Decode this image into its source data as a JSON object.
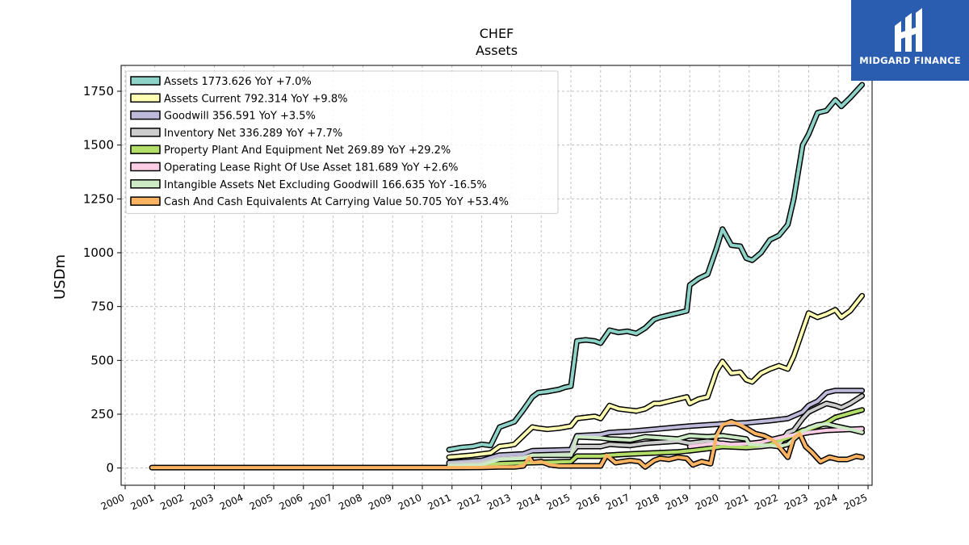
{
  "brand": {
    "name": "MIDGARD FINANCE",
    "bg_color": "#2a5db0"
  },
  "chart_data": {
    "type": "line",
    "title": "CHEF",
    "subtitle": "Assets",
    "ylabel": "USDm",
    "xlabel": "",
    "xlim": [
      2000,
      2025
    ],
    "ylim": [
      -80,
      1870
    ],
    "grid": true,
    "legend_position": "top-left",
    "x_ticks": [
      "2000",
      "2001",
      "2002",
      "2003",
      "2004",
      "2005",
      "2006",
      "2007",
      "2008",
      "2009",
      "2010",
      "2011",
      "2012",
      "2013",
      "2014",
      "2015",
      "2016",
      "2017",
      "2018",
      "2019",
      "2020",
      "2021",
      "2022",
      "2023",
      "2024",
      "2025"
    ],
    "y_ticks": [
      0,
      250,
      500,
      750,
      1000,
      1250,
      1500,
      1750
    ],
    "series": [
      {
        "name": "Assets",
        "label": "Assets  1773.626 YoY +7.0%",
        "color": "#8dd3c7",
        "points": [
          [
            2010.9,
            85
          ],
          [
            2011.3,
            95
          ],
          [
            2011.7,
            100
          ],
          [
            2012.0,
            110
          ],
          [
            2012.3,
            105
          ],
          [
            2012.6,
            190
          ],
          [
            2012.9,
            205
          ],
          [
            2013.1,
            215
          ],
          [
            2013.4,
            270
          ],
          [
            2013.7,
            330
          ],
          [
            2013.9,
            350
          ],
          [
            2014.2,
            355
          ],
          [
            2014.6,
            365
          ],
          [
            2014.8,
            375
          ],
          [
            2015.0,
            380
          ],
          [
            2015.2,
            590
          ],
          [
            2015.5,
            595
          ],
          [
            2015.8,
            590
          ],
          [
            2016.0,
            580
          ],
          [
            2016.3,
            640
          ],
          [
            2016.6,
            630
          ],
          [
            2016.9,
            635
          ],
          [
            2017.2,
            625
          ],
          [
            2017.5,
            650
          ],
          [
            2017.8,
            690
          ],
          [
            2018.0,
            700
          ],
          [
            2018.3,
            710
          ],
          [
            2018.6,
            720
          ],
          [
            2018.9,
            730
          ],
          [
            2019.0,
            850
          ],
          [
            2019.3,
            880
          ],
          [
            2019.6,
            900
          ],
          [
            2019.9,
            1020
          ],
          [
            2020.1,
            1110
          ],
          [
            2020.4,
            1035
          ],
          [
            2020.7,
            1030
          ],
          [
            2020.9,
            975
          ],
          [
            2021.1,
            965
          ],
          [
            2021.4,
            1000
          ],
          [
            2021.7,
            1060
          ],
          [
            2022.0,
            1080
          ],
          [
            2022.3,
            1130
          ],
          [
            2022.5,
            1250
          ],
          [
            2022.8,
            1500
          ],
          [
            2023.0,
            1550
          ],
          [
            2023.3,
            1650
          ],
          [
            2023.6,
            1660
          ],
          [
            2023.9,
            1710
          ],
          [
            2024.1,
            1680
          ],
          [
            2024.4,
            1720
          ],
          [
            2024.8,
            1780
          ]
        ]
      },
      {
        "name": "Assets Current",
        "label": "Assets Current  792.314 YoY +9.8%",
        "color": "#ffffb3",
        "points": [
          [
            2010.9,
            50
          ],
          [
            2011.3,
            55
          ],
          [
            2011.7,
            60
          ],
          [
            2012.0,
            65
          ],
          [
            2012.3,
            70
          ],
          [
            2012.6,
            100
          ],
          [
            2012.9,
            105
          ],
          [
            2013.1,
            110
          ],
          [
            2013.4,
            150
          ],
          [
            2013.7,
            190
          ],
          [
            2013.9,
            185
          ],
          [
            2014.2,
            180
          ],
          [
            2014.6,
            185
          ],
          [
            2014.8,
            190
          ],
          [
            2015.0,
            195
          ],
          [
            2015.2,
            230
          ],
          [
            2015.5,
            235
          ],
          [
            2015.8,
            240
          ],
          [
            2016.0,
            230
          ],
          [
            2016.3,
            290
          ],
          [
            2016.6,
            275
          ],
          [
            2016.9,
            270
          ],
          [
            2017.2,
            265
          ],
          [
            2017.5,
            275
          ],
          [
            2017.8,
            300
          ],
          [
            2018.0,
            300
          ],
          [
            2018.3,
            310
          ],
          [
            2018.6,
            320
          ],
          [
            2018.9,
            330
          ],
          [
            2019.0,
            300
          ],
          [
            2019.3,
            320
          ],
          [
            2019.6,
            330
          ],
          [
            2019.9,
            450
          ],
          [
            2020.1,
            495
          ],
          [
            2020.4,
            440
          ],
          [
            2020.7,
            445
          ],
          [
            2020.9,
            410
          ],
          [
            2021.1,
            400
          ],
          [
            2021.4,
            440
          ],
          [
            2021.7,
            460
          ],
          [
            2022.0,
            475
          ],
          [
            2022.3,
            460
          ],
          [
            2022.5,
            520
          ],
          [
            2022.8,
            640
          ],
          [
            2023.0,
            720
          ],
          [
            2023.3,
            700
          ],
          [
            2023.6,
            715
          ],
          [
            2023.9,
            735
          ],
          [
            2024.1,
            700
          ],
          [
            2024.4,
            730
          ],
          [
            2024.8,
            800
          ]
        ]
      },
      {
        "name": "Goodwill",
        "label": "Goodwill  356.591 YoY +3.5%",
        "color": "#bebada",
        "points": [
          [
            2010.9,
            25
          ],
          [
            2012.0,
            35
          ],
          [
            2012.6,
            60
          ],
          [
            2013.4,
            65
          ],
          [
            2013.7,
            80
          ],
          [
            2015.0,
            85
          ],
          [
            2015.2,
            150
          ],
          [
            2016.0,
            155
          ],
          [
            2016.3,
            165
          ],
          [
            2017.0,
            170
          ],
          [
            2017.8,
            180
          ],
          [
            2018.6,
            190
          ],
          [
            2019.0,
            195
          ],
          [
            2019.6,
            200
          ],
          [
            2020.1,
            205
          ],
          [
            2020.9,
            210
          ],
          [
            2021.7,
            220
          ],
          [
            2022.3,
            230
          ],
          [
            2022.8,
            260
          ],
          [
            2023.0,
            290
          ],
          [
            2023.3,
            310
          ],
          [
            2023.6,
            350
          ],
          [
            2023.9,
            360
          ],
          [
            2024.8,
            360
          ]
        ]
      },
      {
        "name": "Inventory Net",
        "label": "Inventory Net  336.289 YoY +7.7%",
        "color": "#cccccc",
        "points": [
          [
            2010.9,
            20
          ],
          [
            2012.0,
            25
          ],
          [
            2012.6,
            45
          ],
          [
            2013.4,
            50
          ],
          [
            2013.7,
            60
          ],
          [
            2015.0,
            65
          ],
          [
            2015.2,
            100
          ],
          [
            2016.0,
            100
          ],
          [
            2016.3,
            110
          ],
          [
            2017.0,
            105
          ],
          [
            2017.5,
            115
          ],
          [
            2018.0,
            120
          ],
          [
            2018.6,
            125
          ],
          [
            2019.0,
            115
          ],
          [
            2019.6,
            125
          ],
          [
            2019.9,
            120
          ],
          [
            2020.1,
            110
          ],
          [
            2020.4,
            100
          ],
          [
            2020.9,
            95
          ],
          [
            2021.4,
            100
          ],
          [
            2021.7,
            105
          ],
          [
            2022.0,
            110
          ],
          [
            2022.3,
            165
          ],
          [
            2022.5,
            175
          ],
          [
            2022.8,
            230
          ],
          [
            2023.0,
            260
          ],
          [
            2023.3,
            280
          ],
          [
            2023.6,
            300
          ],
          [
            2023.9,
            290
          ],
          [
            2024.1,
            280
          ],
          [
            2024.4,
            300
          ],
          [
            2024.8,
            335
          ]
        ]
      },
      {
        "name": "Property Plant And Equipment Net",
        "label": "Property Plant And Equipment Net  269.89 YoY +29.2%",
        "color": "#b3de69",
        "points": [
          [
            2010.9,
            10
          ],
          [
            2012.0,
            15
          ],
          [
            2012.6,
            20
          ],
          [
            2013.7,
            25
          ],
          [
            2015.0,
            30
          ],
          [
            2015.2,
            55
          ],
          [
            2016.0,
            55
          ],
          [
            2016.3,
            60
          ],
          [
            2017.0,
            65
          ],
          [
            2017.8,
            70
          ],
          [
            2018.6,
            75
          ],
          [
            2019.0,
            80
          ],
          [
            2019.6,
            90
          ],
          [
            2020.1,
            100
          ],
          [
            2020.9,
            95
          ],
          [
            2021.7,
            110
          ],
          [
            2022.3,
            140
          ],
          [
            2022.8,
            175
          ],
          [
            2023.0,
            180
          ],
          [
            2023.3,
            195
          ],
          [
            2023.6,
            210
          ],
          [
            2023.9,
            235
          ],
          [
            2024.4,
            255
          ],
          [
            2024.8,
            270
          ]
        ]
      },
      {
        "name": "Operating Lease Right Of Use Asset",
        "label": "Operating Lease Right Of Use Asset  181.689 YoY +2.6%",
        "color": "#fccde5",
        "points": [
          [
            2019.0,
            100
          ],
          [
            2019.3,
            105
          ],
          [
            2019.6,
            110
          ],
          [
            2020.1,
            115
          ],
          [
            2020.4,
            110
          ],
          [
            2020.9,
            112
          ],
          [
            2021.4,
            120
          ],
          [
            2021.7,
            130
          ],
          [
            2022.0,
            140
          ],
          [
            2022.3,
            150
          ],
          [
            2022.8,
            160
          ],
          [
            2023.0,
            165
          ],
          [
            2023.3,
            170
          ],
          [
            2023.6,
            175
          ],
          [
            2024.1,
            178
          ],
          [
            2024.8,
            182
          ]
        ]
      },
      {
        "name": "Intangible Assets Net Excluding Goodwill",
        "label": "Intangible Assets Net Excluding Goodwill  166.635 YoY -16.5%",
        "color": "#ccebc5",
        "points": [
          [
            2010.9,
            10
          ],
          [
            2012.0,
            15
          ],
          [
            2012.6,
            40
          ],
          [
            2013.4,
            45
          ],
          [
            2013.7,
            60
          ],
          [
            2015.0,
            60
          ],
          [
            2015.2,
            145
          ],
          [
            2016.0,
            140
          ],
          [
            2016.3,
            135
          ],
          [
            2017.0,
            130
          ],
          [
            2017.5,
            145
          ],
          [
            2018.0,
            140
          ],
          [
            2018.6,
            135
          ],
          [
            2019.0,
            150
          ],
          [
            2019.6,
            145
          ],
          [
            2020.1,
            150
          ],
          [
            2020.9,
            135
          ],
          [
            2021.0,
            110
          ],
          [
            2021.7,
            105
          ],
          [
            2022.0,
            100
          ],
          [
            2022.3,
            110
          ],
          [
            2022.8,
            170
          ],
          [
            2023.0,
            185
          ],
          [
            2023.3,
            200
          ],
          [
            2023.6,
            205
          ],
          [
            2023.9,
            195
          ],
          [
            2024.4,
            180
          ],
          [
            2024.8,
            166
          ]
        ]
      },
      {
        "name": "Cash And Cash Equivalents At Carrying Value",
        "label": "Cash And Cash Equivalents At Carrying Value  50.705 YoY +53.4%",
        "color": "#fdb462",
        "points": [
          [
            2000.9,
            2
          ],
          [
            2010.9,
            2
          ],
          [
            2012.0,
            3
          ],
          [
            2012.6,
            5
          ],
          [
            2013.1,
            5
          ],
          [
            2013.4,
            10
          ],
          [
            2013.6,
            50
          ],
          [
            2013.7,
            25
          ],
          [
            2014.0,
            30
          ],
          [
            2014.3,
            15
          ],
          [
            2014.6,
            10
          ],
          [
            2015.0,
            10
          ],
          [
            2015.5,
            10
          ],
          [
            2016.0,
            10
          ],
          [
            2016.2,
            60
          ],
          [
            2016.5,
            25
          ],
          [
            2017.0,
            35
          ],
          [
            2017.3,
            30
          ],
          [
            2017.5,
            5
          ],
          [
            2017.8,
            35
          ],
          [
            2018.0,
            45
          ],
          [
            2018.3,
            40
          ],
          [
            2018.6,
            50
          ],
          [
            2018.9,
            45
          ],
          [
            2019.1,
            15
          ],
          [
            2019.4,
            30
          ],
          [
            2019.7,
            20
          ],
          [
            2019.9,
            150
          ],
          [
            2020.1,
            200
          ],
          [
            2020.4,
            215
          ],
          [
            2020.7,
            200
          ],
          [
            2020.9,
            185
          ],
          [
            2021.2,
            160
          ],
          [
            2021.5,
            150
          ],
          [
            2021.8,
            130
          ],
          [
            2022.0,
            100
          ],
          [
            2022.3,
            50
          ],
          [
            2022.5,
            140
          ],
          [
            2022.7,
            160
          ],
          [
            2022.9,
            100
          ],
          [
            2023.1,
            75
          ],
          [
            2023.4,
            30
          ],
          [
            2023.7,
            50
          ],
          [
            2024.0,
            40
          ],
          [
            2024.3,
            40
          ],
          [
            2024.6,
            55
          ],
          [
            2024.8,
            50
          ]
        ]
      }
    ]
  }
}
